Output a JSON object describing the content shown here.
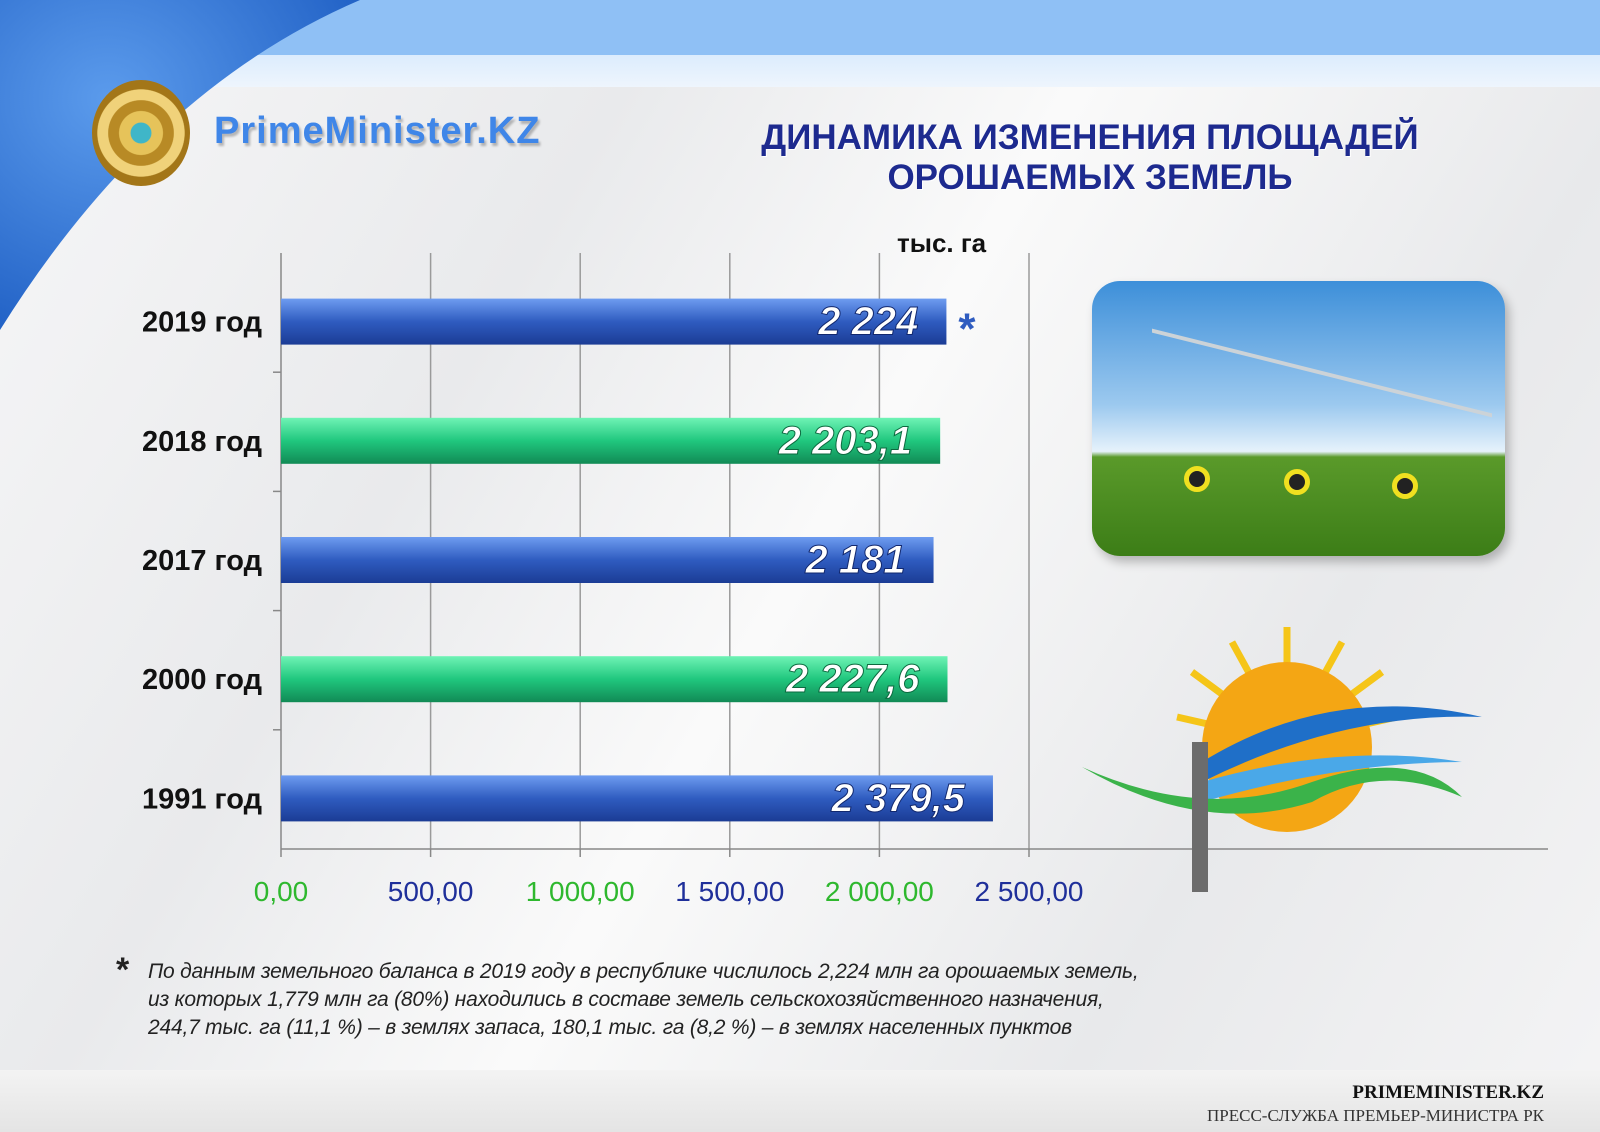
{
  "header": {
    "brand": "PrimeMinister.KZ",
    "title_line1": "ДИНАМИКА ИЗМЕНЕНИЯ ПЛОЩАДЕЙ",
    "title_line2": "ОРОШАЕМЫХ ЗЕМЕЛЬ"
  },
  "chart_data": {
    "type": "bar",
    "orientation": "horizontal",
    "unit_label": "тыс. га",
    "categories": [
      "2019 год",
      "2018 год",
      "2017 год",
      "2000 год",
      "1991 год"
    ],
    "values": [
      2224,
      2203.1,
      2181,
      2227.6,
      2379.5
    ],
    "value_labels": [
      "2 224",
      "2 203,1",
      "2 181",
      "2 227,6",
      "2 379,5"
    ],
    "bar_colors": [
      "#2f5cc0",
      "#20c77e",
      "#2f5cc0",
      "#20c77e",
      "#2f5cc0"
    ],
    "annotation_2019": "*",
    "xlim": [
      0,
      2500
    ],
    "xticks": [
      0,
      500,
      1000,
      1500,
      2000,
      2500
    ],
    "xtick_labels": [
      "0,00",
      "500,00",
      "1 000,00",
      "1 500,00",
      "2 000,00",
      "2 500,00"
    ],
    "xtick_colors": [
      "#2eb82e",
      "#1f2f9a",
      "#2eb82e",
      "#1f2f9a",
      "#2eb82e",
      "#1f2f9a"
    ],
    "grid": true
  },
  "footnote": {
    "star": "*",
    "lines": [
      "По данным земельного баланса в 2019 году в республике числилось 2,224 млн га орошаемых земель,",
      "из которых 1,779 млн га (80%) находились в составе земель сельскохозяйственного назначения,",
      "244,7 тыс. га (11,1 %) – в землях запаса, 180,1 тыс. га (8,2 %) – в землях населенных пунктов"
    ]
  },
  "footer": {
    "site": "PRIMEMINISTER.KZ",
    "service": "ПРЕСС-СЛУЖБА ПРЕМЬЕР-МИНИСТРА РК"
  }
}
